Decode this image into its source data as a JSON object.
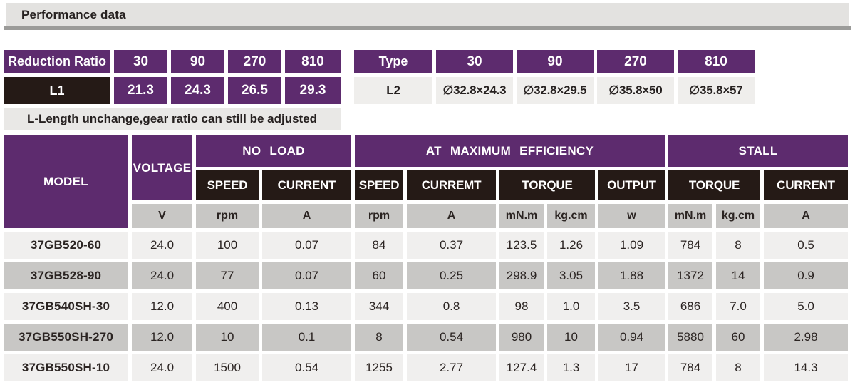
{
  "page": {
    "title": "Performance data"
  },
  "colors": {
    "brand_purple": "#5d2b6e",
    "dark_header": "#251a16",
    "unit_gray": "#c8c7c5",
    "row_light": "#f0efee",
    "row_alt": "#c8c7c5"
  },
  "reduction_table": {
    "header_label": "Reduction Ratio",
    "columns": [
      "30",
      "90",
      "270",
      "810"
    ],
    "row_label": "L1",
    "values": [
      "21.3",
      "24.3",
      "26.5",
      "29.3"
    ]
  },
  "note": "L-Length unchange,gear ratio can still be adjusted",
  "type_table": {
    "header_label": "Type",
    "columns": [
      "30",
      "90",
      "270",
      "810"
    ],
    "row_label": "L2",
    "values": [
      "∅32.8×24.3",
      "∅32.8×29.5",
      "∅35.8×50",
      "∅35.8×57"
    ]
  },
  "performance_table": {
    "model_header": "MODEL",
    "voltage_header": "VOLTAGE",
    "groups": [
      "NO LOAD",
      "AT MAXIMUM EFFICIENCY",
      "STALL"
    ],
    "sub_headers": [
      "SPEED",
      "CURRENT",
      "SPEED",
      "CURREMT",
      "TORQUE",
      "OUTPUT",
      "TORQUE",
      "CURRENT"
    ],
    "units": [
      "V",
      "rpm",
      "A",
      "rpm",
      "A",
      "mN.m",
      "kg.cm",
      "w",
      "mN.m",
      "kg.cm",
      "A"
    ],
    "rows": [
      {
        "model": "37GB520-60",
        "values": [
          "24.0",
          "100",
          "0.07",
          "84",
          "0.37",
          "123.5",
          "1.26",
          "1.09",
          "784",
          "8",
          "0.5"
        ]
      },
      {
        "model": "37GB528-90",
        "values": [
          "24.0",
          "77",
          "0.07",
          "60",
          "0.25",
          "298.9",
          "3.05",
          "1.88",
          "1372",
          "14",
          "0.9"
        ]
      },
      {
        "model": "37GB540SH-30",
        "values": [
          "12.0",
          "400",
          "0.13",
          "344",
          "0.8",
          "98",
          "1.0",
          "3.5",
          "686",
          "7.0",
          "5.0"
        ]
      },
      {
        "model": "37GB550SH-270",
        "values": [
          "12.0",
          "10",
          "0.1",
          "8",
          "0.54",
          "980",
          "10",
          "0.94",
          "5880",
          "60",
          "2.98"
        ]
      },
      {
        "model": "37GB550SH-10",
        "values": [
          "24.0",
          "1500",
          "0.54",
          "1255",
          "2.77",
          "127.4",
          "1.3",
          "17",
          "784",
          "8",
          "14.3"
        ]
      }
    ]
  }
}
